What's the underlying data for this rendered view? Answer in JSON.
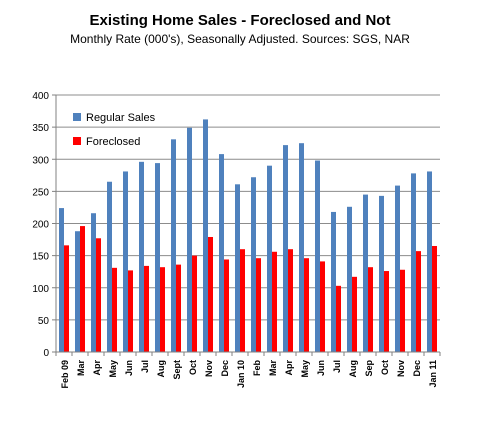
{
  "chart_data": {
    "type": "bar",
    "title": "Existing Home Sales - Foreclosed and Not",
    "subtitle": "Monthly Rate (000's), Seasonally Adjusted.  Sources: SGS, NAR",
    "xlabel": "",
    "ylabel": "",
    "ylim": [
      0,
      400
    ],
    "yticks": [
      0,
      50,
      100,
      150,
      200,
      250,
      300,
      350,
      400
    ],
    "grid": true,
    "legend_position": "top-left",
    "categories": [
      "Feb 09",
      "Mar",
      "Apr",
      "May",
      "Jun",
      "Jul",
      "Aug",
      "Sept",
      "Oct",
      "Nov",
      "Dec",
      "Jan 10",
      "Feb",
      "Mar",
      "Apr",
      "May",
      "Jun",
      "Jul",
      "Aug",
      "Sep",
      "Oct",
      "Nov",
      "Dec",
      "Jan 11"
    ],
    "series": [
      {
        "name": "Regular Sales",
        "color": "#4f81bd",
        "values": [
          224,
          188,
          216,
          265,
          281,
          296,
          294,
          331,
          349,
          362,
          308,
          261,
          272,
          290,
          322,
          325,
          298,
          218,
          226,
          245,
          243,
          259,
          278,
          281
        ]
      },
      {
        "name": "Foreclosed",
        "color": "#ff0000",
        "values": [
          166,
          196,
          177,
          131,
          127,
          134,
          132,
          136,
          150,
          179,
          144,
          160,
          146,
          156,
          160,
          146,
          141,
          103,
          117,
          132,
          126,
          128,
          157,
          165
        ]
      }
    ]
  }
}
